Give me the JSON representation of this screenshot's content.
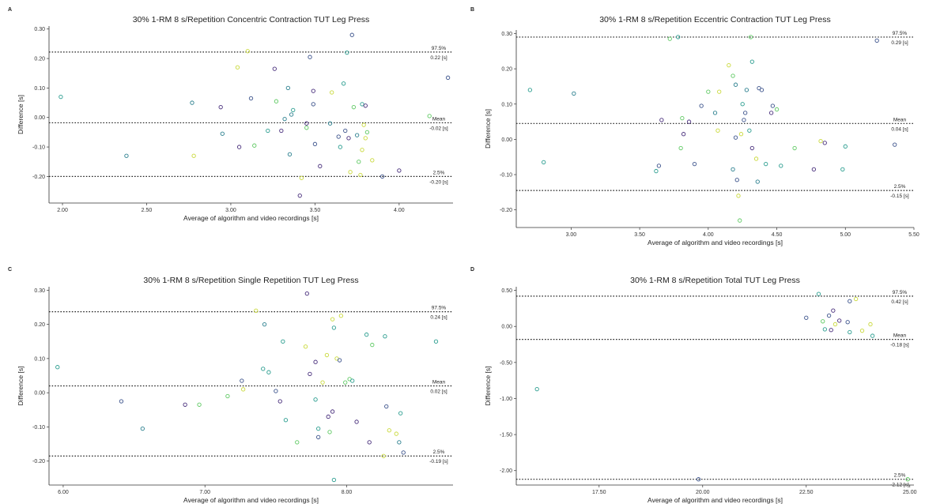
{
  "chart_data": [
    {
      "panel": "A",
      "type": "scatter",
      "title": "30% 1-RM 8 s/Repetition Concentric Contraction TUT Leg Press",
      "xlabel": "Average of algorithm and video recordings [s]",
      "ylabel": "Difference [s]",
      "xlim": [
        1.92,
        4.32
      ],
      "ylim": [
        -0.29,
        0.31
      ],
      "xticks": [
        "2.00",
        "2.50",
        "3.00",
        "3.50",
        "4.00"
      ],
      "xtick_values": [
        2.0,
        2.5,
        3.0,
        3.5,
        4.0
      ],
      "yticks": [
        "-0.20",
        "-0.10",
        "0.00",
        "0.10",
        "0.20",
        "0.30"
      ],
      "ytick_values": [
        -0.2,
        -0.1,
        0.0,
        0.1,
        0.2,
        0.3
      ],
      "grid": false,
      "lines": [
        {
          "value": 0.222,
          "name": "97.5%",
          "label": "0.22 [s]"
        },
        {
          "value": -0.018,
          "name": "Mean",
          "label": "-0.02 [s]"
        },
        {
          "value": -0.2,
          "name": "2.5%",
          "label": "-0.20 [s]"
        }
      ],
      "points": [
        [
          1.99,
          0.07,
          "#2a9d8f"
        ],
        [
          2.38,
          -0.13,
          "#2a7f8e"
        ],
        [
          2.77,
          0.05,
          "#2a7f8e"
        ],
        [
          2.78,
          -0.13,
          "#c9d93a"
        ],
        [
          2.94,
          0.035,
          "#472d7b"
        ],
        [
          2.95,
          -0.055,
          "#2a7f8e"
        ],
        [
          3.04,
          0.17,
          "#c9d93a"
        ],
        [
          3.05,
          -0.1,
          "#472d7b"
        ],
        [
          3.1,
          0.225,
          "#c9d93a"
        ],
        [
          3.12,
          0.065,
          "#3b528b"
        ],
        [
          3.14,
          -0.095,
          "#5ec962"
        ],
        [
          3.22,
          -0.045,
          "#2a9d8f"
        ],
        [
          3.26,
          0.165,
          "#472d7b"
        ],
        [
          3.27,
          0.055,
          "#5ec962"
        ],
        [
          3.3,
          -0.045,
          "#472d7b"
        ],
        [
          3.32,
          -0.005,
          "#2a7f8e"
        ],
        [
          3.34,
          0.1,
          "#2a7f8e"
        ],
        [
          3.35,
          -0.125,
          "#2a7f8e"
        ],
        [
          3.36,
          0.01,
          "#2a7f8e"
        ],
        [
          3.37,
          0.025,
          "#2a9d8f"
        ],
        [
          3.41,
          -0.265,
          "#472d7b"
        ],
        [
          3.42,
          -0.205,
          "#c9d93a"
        ],
        [
          3.45,
          -0.02,
          "#472d7b"
        ],
        [
          3.45,
          -0.035,
          "#5ec962"
        ],
        [
          3.47,
          0.205,
          "#3b528b"
        ],
        [
          3.49,
          0.09,
          "#472d7b"
        ],
        [
          3.49,
          0.045,
          "#3b528b"
        ],
        [
          3.5,
          -0.09,
          "#3b528b"
        ],
        [
          3.53,
          -0.165,
          "#472d7b"
        ],
        [
          3.59,
          -0.02,
          "#2a7f8e"
        ],
        [
          3.6,
          0.085,
          "#c9d93a"
        ],
        [
          3.64,
          -0.065,
          "#3b528b"
        ],
        [
          3.65,
          -0.1,
          "#2a9d8f"
        ],
        [
          3.67,
          0.115,
          "#2a9d8f"
        ],
        [
          3.68,
          -0.045,
          "#3b528b"
        ],
        [
          3.69,
          0.22,
          "#2a9d8f"
        ],
        [
          3.7,
          -0.07,
          "#472d7b"
        ],
        [
          3.71,
          -0.185,
          "#c9d93a"
        ],
        [
          3.72,
          0.28,
          "#3b528b"
        ],
        [
          3.73,
          0.035,
          "#5ec962"
        ],
        [
          3.75,
          -0.06,
          "#2a7f8e"
        ],
        [
          3.76,
          -0.15,
          "#5ec962"
        ],
        [
          3.77,
          -0.195,
          "#c9d93a"
        ],
        [
          3.78,
          -0.11,
          "#c9d93a"
        ],
        [
          3.78,
          0.045,
          "#2a9d8f"
        ],
        [
          3.79,
          -0.025,
          "#c9d93a"
        ],
        [
          3.8,
          -0.07,
          "#c9d93a"
        ],
        [
          3.8,
          0.04,
          "#472d7b"
        ],
        [
          3.81,
          -0.05,
          "#5ec962"
        ],
        [
          3.84,
          -0.145,
          "#c9d93a"
        ],
        [
          3.9,
          -0.2,
          "#3b528b"
        ],
        [
          4.0,
          -0.18,
          "#472d7b"
        ],
        [
          4.18,
          0.005,
          "#5ec962"
        ],
        [
          4.29,
          0.135,
          "#3b528b"
        ]
      ]
    },
    {
      "panel": "B",
      "type": "scatter",
      "title": "30% 1-RM 8 s/Repetition Eccentric Contraction TUT Leg Press",
      "xlabel": "Average of algorithm and video recordings [s]",
      "ylabel": "Difference [s]",
      "xlim": [
        2.6,
        5.5
      ],
      "ylim": [
        -0.25,
        0.31
      ],
      "xticks": [
        "3.00",
        "3.50",
        "4.00",
        "4.50",
        "5.00",
        "5.50"
      ],
      "xtick_values": [
        3.0,
        3.5,
        4.0,
        4.5,
        5.0,
        5.5
      ],
      "yticks": [
        "-0.20",
        "-0.10",
        "0.00",
        "0.10",
        "0.20",
        "0.30"
      ],
      "ytick_values": [
        -0.2,
        -0.1,
        0.0,
        0.1,
        0.2,
        0.3
      ],
      "grid": false,
      "lines": [
        {
          "value": 0.29,
          "name": "97.5%",
          "label": "0.29 [s]"
        },
        {
          "value": 0.045,
          "name": "Mean",
          "label": "0.04 [s]"
        },
        {
          "value": -0.145,
          "name": "2.5%",
          "label": "-0.15 [s]"
        }
      ],
      "points": [
        [
          2.7,
          0.14,
          "#2a9d8f"
        ],
        [
          2.8,
          -0.065,
          "#2a9d8f"
        ],
        [
          3.02,
          0.13,
          "#2a7f8e"
        ],
        [
          3.62,
          -0.09,
          "#2a9d8f"
        ],
        [
          3.64,
          -0.075,
          "#3b528b"
        ],
        [
          3.66,
          0.055,
          "#472d7b"
        ],
        [
          3.72,
          0.285,
          "#5ec962"
        ],
        [
          3.78,
          0.29,
          "#2a9d8f"
        ],
        [
          3.8,
          -0.025,
          "#5ec962"
        ],
        [
          3.81,
          0.06,
          "#5ec962"
        ],
        [
          3.82,
          0.015,
          "#472d7b"
        ],
        [
          3.86,
          0.05,
          "#472d7b"
        ],
        [
          3.9,
          -0.07,
          "#3b528b"
        ],
        [
          3.95,
          0.095,
          "#3b528b"
        ],
        [
          4.0,
          0.135,
          "#5ec962"
        ],
        [
          4.05,
          0.075,
          "#2a7f8e"
        ],
        [
          4.07,
          0.025,
          "#c9d93a"
        ],
        [
          4.08,
          0.135,
          "#c9d93a"
        ],
        [
          4.15,
          0.21,
          "#c9d93a"
        ],
        [
          4.18,
          0.18,
          "#5ec962"
        ],
        [
          4.18,
          -0.085,
          "#2a7f8e"
        ],
        [
          4.2,
          0.155,
          "#2a7f8e"
        ],
        [
          4.2,
          0.005,
          "#3b528b"
        ],
        [
          4.21,
          -0.115,
          "#3b528b"
        ],
        [
          4.22,
          -0.16,
          "#c9d93a"
        ],
        [
          4.23,
          -0.23,
          "#5ec962"
        ],
        [
          4.24,
          0.015,
          "#c9d93a"
        ],
        [
          4.25,
          0.1,
          "#2a9d8f"
        ],
        [
          4.26,
          0.055,
          "#3b528b"
        ],
        [
          4.27,
          0.075,
          "#3b528b"
        ],
        [
          4.28,
          0.14,
          "#2a7f8e"
        ],
        [
          4.3,
          0.025,
          "#2a9d8f"
        ],
        [
          4.31,
          0.29,
          "#5ec962"
        ],
        [
          4.32,
          0.22,
          "#2a9d8f"
        ],
        [
          4.32,
          -0.025,
          "#472d7b"
        ],
        [
          4.35,
          -0.055,
          "#c9d93a"
        ],
        [
          4.36,
          -0.12,
          "#2a7f8e"
        ],
        [
          4.37,
          0.145,
          "#3b528b"
        ],
        [
          4.39,
          0.14,
          "#3b528b"
        ],
        [
          4.42,
          -0.07,
          "#2a9d8f"
        ],
        [
          4.46,
          0.075,
          "#472d7b"
        ],
        [
          4.47,
          0.095,
          "#3b528b"
        ],
        [
          4.5,
          0.085,
          "#5ec962"
        ],
        [
          4.53,
          -0.075,
          "#2a9d8f"
        ],
        [
          4.63,
          -0.025,
          "#5ec962"
        ],
        [
          4.77,
          -0.085,
          "#472d7b"
        ],
        [
          4.82,
          -0.005,
          "#c9d93a"
        ],
        [
          4.85,
          -0.01,
          "#472d7b"
        ],
        [
          4.98,
          -0.085,
          "#2a9d8f"
        ],
        [
          5.0,
          -0.02,
          "#2a9d8f"
        ],
        [
          5.23,
          0.28,
          "#3b528b"
        ],
        [
          5.36,
          -0.015,
          "#3b528b"
        ]
      ]
    },
    {
      "panel": "C",
      "type": "scatter",
      "title": "30% 1-RM 8 s/Repetition Single Repetition TUT Leg Press",
      "xlabel": "Average of algorithm and video recordings [s]",
      "ylabel": "Difference [s]",
      "xlim": [
        5.9,
        8.75
      ],
      "ylim": [
        -0.27,
        0.31
      ],
      "xticks": [
        "6.00",
        "7.00",
        "8.00"
      ],
      "xtick_values": [
        6.0,
        7.0,
        8.0
      ],
      "yticks": [
        "-0.20",
        "-0.10",
        "0.00",
        "0.10",
        "0.20",
        "0.30"
      ],
      "ytick_values": [
        -0.2,
        -0.1,
        0.0,
        0.1,
        0.2,
        0.3
      ],
      "grid": false,
      "lines": [
        {
          "value": 0.237,
          "name": "97.5%",
          "label": "0.24 [s]"
        },
        {
          "value": 0.02,
          "name": "Mean",
          "label": "0.02 [s]"
        },
        {
          "value": -0.185,
          "name": "2.5%",
          "label": "-0.19 [s]"
        }
      ],
      "points": [
        [
          5.96,
          0.075,
          "#2a9d8f"
        ],
        [
          6.41,
          -0.025,
          "#3b528b"
        ],
        [
          6.56,
          -0.105,
          "#2a7f8e"
        ],
        [
          6.86,
          -0.035,
          "#472d7b"
        ],
        [
          6.96,
          -0.035,
          "#5ec962"
        ],
        [
          7.16,
          -0.01,
          "#5ec962"
        ],
        [
          7.26,
          0.035,
          "#3b528b"
        ],
        [
          7.27,
          0.01,
          "#c9d93a"
        ],
        [
          7.36,
          0.24,
          "#c9d93a"
        ],
        [
          7.41,
          0.07,
          "#2a9d8f"
        ],
        [
          7.42,
          0.2,
          "#2a7f8e"
        ],
        [
          7.45,
          0.06,
          "#2a9d8f"
        ],
        [
          7.5,
          0.005,
          "#3b528b"
        ],
        [
          7.53,
          -0.025,
          "#472d7b"
        ],
        [
          7.55,
          0.15,
          "#2a9d8f"
        ],
        [
          7.57,
          -0.08,
          "#2a9d8f"
        ],
        [
          7.65,
          -0.145,
          "#5ec962"
        ],
        [
          7.71,
          0.135,
          "#c9d93a"
        ],
        [
          7.72,
          0.29,
          "#472d7b"
        ],
        [
          7.74,
          0.055,
          "#472d7b"
        ],
        [
          7.78,
          0.09,
          "#472d7b"
        ],
        [
          7.78,
          -0.02,
          "#2a9d8f"
        ],
        [
          7.8,
          -0.13,
          "#3b528b"
        ],
        [
          7.8,
          -0.105,
          "#2a9d8f"
        ],
        [
          7.83,
          0.03,
          "#c9d93a"
        ],
        [
          7.86,
          0.11,
          "#c9d93a"
        ],
        [
          7.87,
          -0.07,
          "#472d7b"
        ],
        [
          7.88,
          -0.115,
          "#5ec962"
        ],
        [
          7.9,
          -0.055,
          "#472d7b"
        ],
        [
          7.9,
          0.215,
          "#c9d93a"
        ],
        [
          7.91,
          -0.255,
          "#2a9d8f"
        ],
        [
          7.91,
          0.19,
          "#2a9d8f"
        ],
        [
          7.93,
          0.1,
          "#c9d93a"
        ],
        [
          7.95,
          0.095,
          "#3b528b"
        ],
        [
          7.96,
          0.225,
          "#c9d93a"
        ],
        [
          7.99,
          0.03,
          "#5ec962"
        ],
        [
          8.02,
          0.04,
          "#5ec962"
        ],
        [
          8.04,
          0.035,
          "#2a9d8f"
        ],
        [
          8.07,
          -0.085,
          "#472d7b"
        ],
        [
          8.14,
          0.17,
          "#2a9d8f"
        ],
        [
          8.16,
          -0.145,
          "#472d7b"
        ],
        [
          8.18,
          0.14,
          "#5ec962"
        ],
        [
          8.26,
          -0.185,
          "#c9d93a"
        ],
        [
          8.27,
          0.165,
          "#2a9d8f"
        ],
        [
          8.28,
          -0.04,
          "#3b528b"
        ],
        [
          8.3,
          -0.11,
          "#c9d93a"
        ],
        [
          8.35,
          -0.12,
          "#c9d93a"
        ],
        [
          8.37,
          -0.145,
          "#2a7f8e"
        ],
        [
          8.38,
          -0.06,
          "#2a9d8f"
        ],
        [
          8.4,
          -0.175,
          "#3b528b"
        ],
        [
          8.63,
          0.15,
          "#2a9d8f"
        ]
      ]
    },
    {
      "panel": "D",
      "type": "scatter",
      "title": "30% 1-RM 8 s/Repetition Total TUT Leg Press",
      "xlabel": "Average of algorithm and video recordings [s]",
      "ylabel": "Difference [s]",
      "xlim": [
        15.5,
        25.1
      ],
      "ylim": [
        -2.2,
        0.55
      ],
      "xticks": [
        "17.50",
        "20.00",
        "22.50",
        "25.00"
      ],
      "xtick_values": [
        17.5,
        20.0,
        22.5,
        25.0
      ],
      "yticks": [
        "-2.00",
        "-1.50",
        "-1.00",
        "-0.50",
        "0.00",
        "0.50"
      ],
      "ytick_values": [
        -2.0,
        -1.5,
        -1.0,
        -0.5,
        0.0,
        0.5
      ],
      "grid": false,
      "lines": [
        {
          "value": 0.42,
          "name": "97.5%",
          "label": "0.42 [s]"
        },
        {
          "value": -0.18,
          "name": "Mean",
          "label": "-0.18 [s]"
        },
        {
          "value": -2.12,
          "name": "2.5%",
          "label": "-2.12 [s]"
        }
      ],
      "points": [
        [
          16.0,
          -0.87,
          "#2a9d8f"
        ],
        [
          19.9,
          -2.12,
          "#3b528b"
        ],
        [
          22.5,
          0.12,
          "#3b528b"
        ],
        [
          22.8,
          0.45,
          "#2a9d8f"
        ],
        [
          22.9,
          0.07,
          "#5ec962"
        ],
        [
          22.95,
          -0.04,
          "#2a9d8f"
        ],
        [
          23.05,
          0.15,
          "#3b528b"
        ],
        [
          23.1,
          -0.05,
          "#472d7b"
        ],
        [
          23.15,
          0.22,
          "#472d7b"
        ],
        [
          23.2,
          0.03,
          "#c9d93a"
        ],
        [
          23.3,
          0.08,
          "#472d7b"
        ],
        [
          23.5,
          0.06,
          "#3b528b"
        ],
        [
          23.55,
          0.35,
          "#3b528b"
        ],
        [
          23.55,
          -0.08,
          "#2a9d8f"
        ],
        [
          23.7,
          0.38,
          "#c9d93a"
        ],
        [
          23.85,
          -0.06,
          "#c9d93a"
        ],
        [
          24.05,
          0.03,
          "#c9d93a"
        ],
        [
          24.1,
          -0.13,
          "#2a9d8f"
        ],
        [
          24.95,
          -2.12,
          "#5ec962"
        ]
      ]
    }
  ]
}
